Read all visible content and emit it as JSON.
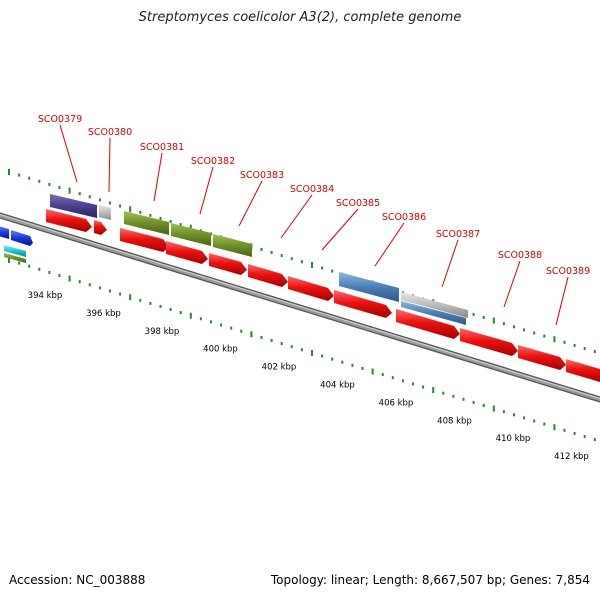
{
  "title": "Streptomyces coelicolor A3(2), complete genome",
  "footer": {
    "accession": "Accession: NC_003888",
    "summary": "Topology: linear; Length: 8,667,507 bp; Genes: 7,854"
  },
  "colors": {
    "label": "#dd0000",
    "tick": "#2a8a2a",
    "backbone": "#8a8a8a",
    "orf": "#ee1111",
    "purple": "#4b3f8f",
    "grey": "#bbbbbb",
    "olive": "#6f8f2a",
    "steel": "#4a7fb5",
    "blue": "#1a33dd",
    "cyan": "#22c0d0"
  },
  "gene_labels": [
    "SCO0379",
    "SCO0380",
    "SCO0381",
    "SCO0382",
    "SCO0383",
    "SCO0384",
    "SCO0385",
    "SCO0386",
    "SCO0387",
    "SCO0388",
    "SCO0389"
  ],
  "kbp_labels": [
    "394 kbp",
    "396 kbp",
    "398 kbp",
    "400 kbp",
    "402 kbp",
    "404 kbp",
    "406 kbp",
    "408 kbp",
    "410 kbp",
    "412 kbp"
  ]
}
